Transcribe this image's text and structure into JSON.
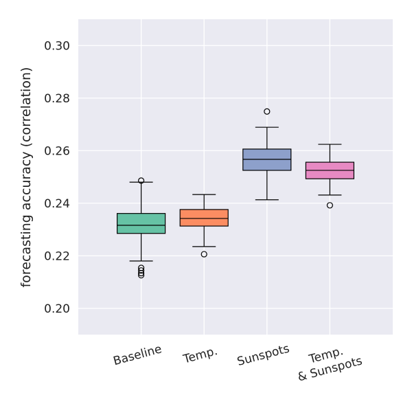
{
  "chart_data": {
    "type": "box",
    "title": "",
    "xlabel": "",
    "ylabel": "forecasting accuracy (correlation)",
    "ylim": [
      0.19,
      0.31
    ],
    "yticks": [
      "0.20",
      "0.22",
      "0.24",
      "0.26",
      "0.28",
      "0.30"
    ],
    "grid": true,
    "categories": [
      {
        "label": [
          "Baseline"
        ],
        "color": "#66c2a5",
        "whisker_low": 0.218,
        "q1": 0.2285,
        "median": 0.2316,
        "q3": 0.2361,
        "whisker_high": 0.248,
        "outliers": [
          0.2486,
          0.2154,
          0.2144,
          0.2134,
          0.2126
        ]
      },
      {
        "label": [
          "Temp."
        ],
        "color": "#fc8d62",
        "whisker_low": 0.2235,
        "q1": 0.2313,
        "median": 0.2342,
        "q3": 0.2376,
        "whisker_high": 0.2433,
        "outliers": [
          0.2206
        ]
      },
      {
        "label": [
          "Sunspots"
        ],
        "color": "#8da0cb",
        "whisker_low": 0.2413,
        "q1": 0.2525,
        "median": 0.2567,
        "q3": 0.2606,
        "whisker_high": 0.2689,
        "outliers": [
          0.2749
        ]
      },
      {
        "label": [
          "Temp.",
          "& Sunspots"
        ],
        "color": "#e78ac3",
        "whisker_low": 0.2431,
        "q1": 0.2493,
        "median": 0.2525,
        "q3": 0.2556,
        "whisker_high": 0.2624,
        "outliers": [
          0.2392
        ]
      }
    ]
  }
}
